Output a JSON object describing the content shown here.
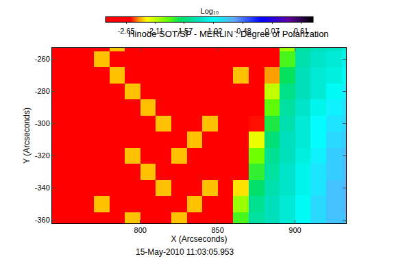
{
  "chart_data": {
    "type": "heatmap",
    "title": "Hinode SOT/SP - MERLIN : Degree of Polarization",
    "x_label": "X (Arcseconds)",
    "y_label": "Y (Arcseconds)",
    "colorbar_title": "Log₁₀",
    "annotations": [
      "15-May-2010 11:03:05.953"
    ],
    "x": [
      745,
      755,
      765,
      775,
      785,
      795,
      805,
      815,
      825,
      835,
      845,
      855,
      865,
      875,
      885,
      895,
      905,
      915,
      925,
      935
    ],
    "y": [
      -360,
      -350,
      -340,
      -330,
      -320,
      -310,
      -300,
      -290,
      -280,
      -270,
      -260,
      -250
    ],
    "z": [
      [
        -2.75,
        -2.75,
        -2.75,
        -2.75,
        -2.75,
        -2.35,
        -2.75,
        -2.75,
        -2.35,
        -2.75,
        -2.75,
        -2.75,
        -1.8,
        -1.4,
        -1.3,
        -1.2,
        -1.05,
        -0.85,
        -0.75,
        -0.75
      ],
      [
        -2.75,
        -2.75,
        -2.75,
        -2.35,
        -2.75,
        -2.75,
        -2.75,
        -2.75,
        -2.75,
        -2.35,
        -2.75,
        -2.75,
        -2.0,
        -1.45,
        -1.3,
        -1.2,
        -1.05,
        -0.85,
        -0.75,
        -0.7
      ],
      [
        -2.75,
        -2.75,
        -2.75,
        -2.75,
        -2.75,
        -2.75,
        -2.75,
        -2.35,
        -2.75,
        -2.75,
        -2.35,
        -2.75,
        -2.3,
        -1.6,
        -1.35,
        -1.25,
        -1.1,
        -0.9,
        -0.75,
        -0.7
      ],
      [
        -2.75,
        -2.75,
        -2.75,
        -2.75,
        -2.75,
        -2.75,
        -2.35,
        -2.75,
        -2.75,
        -2.75,
        -2.75,
        -2.75,
        -2.65,
        -1.75,
        -1.4,
        -1.25,
        -1.1,
        -0.9,
        -0.8,
        -0.75
      ],
      [
        -2.75,
        -2.75,
        -2.75,
        -2.75,
        -2.75,
        -2.35,
        -2.75,
        -2.75,
        -2.35,
        -2.75,
        -2.75,
        -2.75,
        -2.75,
        -1.9,
        -1.45,
        -1.3,
        -1.15,
        -0.95,
        -0.8,
        -0.75
      ],
      [
        -2.75,
        -2.75,
        -2.75,
        -2.75,
        -2.75,
        -2.75,
        -2.75,
        -2.75,
        -2.75,
        -2.35,
        -2.75,
        -2.75,
        -2.75,
        -2.2,
        -1.55,
        -1.3,
        -1.2,
        -1.0,
        -0.85,
        -0.8
      ],
      [
        -2.75,
        -2.75,
        -2.75,
        -2.75,
        -2.75,
        -2.75,
        -2.75,
        -2.35,
        -2.75,
        -2.75,
        -2.35,
        -2.75,
        -2.75,
        -2.55,
        -1.7,
        -1.35,
        -1.2,
        -1.0,
        -0.9,
        -0.85
      ],
      [
        -2.75,
        -2.75,
        -2.75,
        -2.75,
        -2.75,
        -2.75,
        -2.35,
        -2.75,
        -2.75,
        -2.75,
        -2.75,
        -2.75,
        -2.75,
        -2.75,
        -1.85,
        -1.4,
        -1.25,
        -1.1,
        -0.95,
        -0.9
      ],
      [
        -2.75,
        -2.75,
        -2.75,
        -2.75,
        -2.75,
        -2.35,
        -2.75,
        -2.75,
        -2.75,
        -2.75,
        -2.75,
        -2.75,
        -2.75,
        -2.75,
        -2.1,
        -1.5,
        -1.3,
        -1.2,
        -1.05,
        -0.95
      ],
      [
        -2.75,
        -2.75,
        -2.75,
        -2.75,
        -2.35,
        -2.75,
        -2.75,
        -2.75,
        -2.75,
        -2.75,
        -2.75,
        -2.75,
        -2.35,
        -2.75,
        -2.4,
        -1.65,
        -1.3,
        -1.2,
        -1.15,
        -1.05
      ],
      [
        -2.75,
        -2.75,
        -2.75,
        -2.35,
        -2.75,
        -2.75,
        -2.75,
        -2.75,
        -2.75,
        -2.75,
        -2.75,
        -2.75,
        -2.75,
        -2.75,
        -2.7,
        -1.8,
        -1.35,
        -1.25,
        -1.2,
        -1.1
      ],
      [
        -2.75,
        -2.75,
        -2.75,
        -2.75,
        -2.35,
        -2.75,
        -2.75,
        -2.75,
        -2.75,
        -2.75,
        -2.75,
        -2.75,
        -2.75,
        -2.75,
        -2.75,
        -2.0,
        -1.4,
        -1.3,
        -1.25,
        -1.15
      ]
    ],
    "xlim": [
      743,
      933
    ],
    "ylim": [
      -362,
      -253
    ],
    "xticks": [
      800,
      850,
      900
    ],
    "yticks": [
      -360,
      -340,
      -320,
      -300,
      -280,
      -260
    ],
    "zlim": [
      -3.03,
      0.84
    ],
    "zticks": [
      -2.65,
      -2.11,
      -1.57,
      -1.02,
      -0.48,
      0.07,
      0.61
    ]
  }
}
